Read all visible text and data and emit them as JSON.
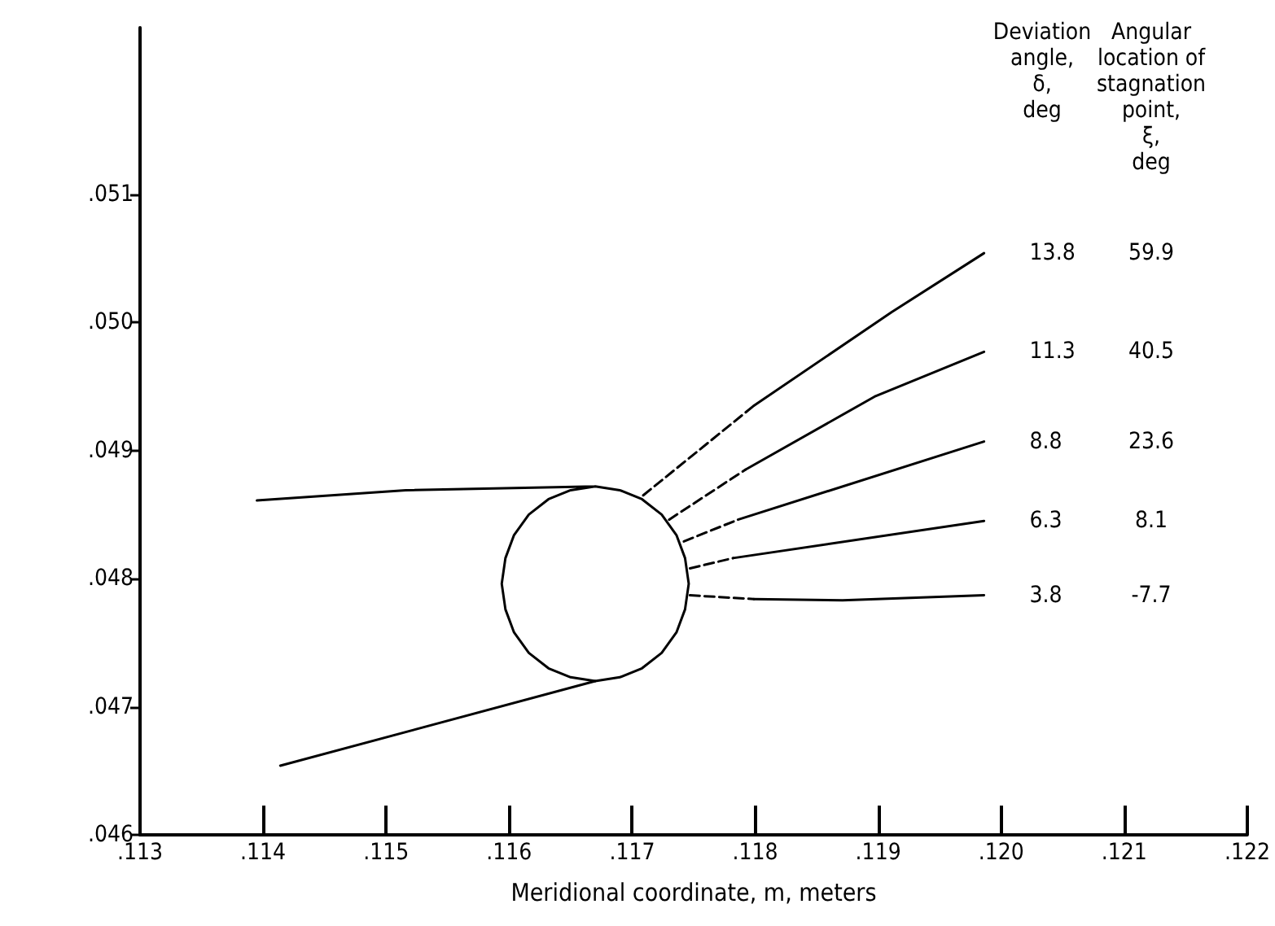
{
  "chart_data": {
    "type": "line",
    "xlabel": "Meridional coordinate, m, meters",
    "xlim": [
      0.113,
      0.122
    ],
    "xticks": [
      {
        "value": 0.113,
        "label": ".113"
      },
      {
        "value": 0.114,
        "label": ".114"
      },
      {
        "value": 0.115,
        "label": ".115"
      },
      {
        "value": 0.116,
        "label": ".116"
      },
      {
        "value": 0.117,
        "label": ".117"
      },
      {
        "value": 0.118,
        "label": ".118"
      },
      {
        "value": 0.119,
        "label": ".119"
      },
      {
        "value": 0.12,
        "label": ".120"
      },
      {
        "value": 0.121,
        "label": ".121"
      },
      {
        "value": 0.122,
        "label": ".122"
      }
    ],
    "ylim": [
      0.046,
      0.0523
    ],
    "yticks": [
      {
        "value": 0.046,
        "label": ".046"
      },
      {
        "value": 0.047,
        "label": ".047"
      },
      {
        "value": 0.048,
        "label": ".048"
      },
      {
        "value": 0.049,
        "label": ".049"
      },
      {
        "value": 0.05,
        "label": ".050"
      },
      {
        "value": 0.051,
        "label": ".051"
      }
    ],
    "grid": false,
    "legend": false,
    "marker": "none",
    "series": [
      {
        "color": "#000000",
        "line_style": "solid",
        "x": [
          0.11395,
          0.11516,
          0.1167,
          0.1169,
          0.11708,
          0.11724,
          0.11736,
          0.11743,
          0.11746,
          0.11743,
          0.11736,
          0.11724,
          0.11708,
          0.1169,
          0.1167,
          0.1165,
          0.11632,
          0.11616,
          0.11604,
          0.11597,
          0.11594,
          0.11597,
          0.11604,
          0.11616,
          0.11632,
          0.1165,
          0.1167
        ],
        "values": [
          0.04861,
          0.04869,
          0.04872,
          0.04869,
          0.04862,
          0.0485,
          0.04834,
          0.04816,
          0.04796,
          0.04776,
          0.04758,
          0.04742,
          0.0473,
          0.04723,
          0.0472,
          0.04723,
          0.0473,
          0.04742,
          0.04758,
          0.04776,
          0.04796,
          0.04816,
          0.04834,
          0.0485,
          0.04862,
          0.04869,
          0.04872
        ]
      },
      {
        "color": "#000000",
        "line_style": "solid",
        "x": [
          0.11414,
          0.1167
        ],
        "values": [
          0.04654,
          0.0472
        ]
      },
      {
        "color": "#000000",
        "line_style": "dashed",
        "x": [
          0.11709,
          0.11799
        ],
        "values": [
          0.04865,
          0.04935
        ]
      },
      {
        "name": "13.8",
        "color": "#000000",
        "line_style": "solid",
        "x": [
          0.11799,
          0.11911,
          0.11986
        ],
        "values": [
          0.04935,
          0.05008,
          0.05054
        ]
      },
      {
        "color": "#000000",
        "line_style": "dashed",
        "x": [
          0.1173,
          0.11792
        ],
        "values": [
          0.04846,
          0.04885
        ]
      },
      {
        "name": "11.3",
        "color": "#000000",
        "line_style": "solid",
        "x": [
          0.11792,
          0.11897,
          0.11986
        ],
        "values": [
          0.04885,
          0.04942,
          0.04977
        ]
      },
      {
        "color": "#000000",
        "line_style": "dashed",
        "x": [
          0.11742,
          0.11786
        ],
        "values": [
          0.04829,
          0.04846
        ]
      },
      {
        "name": "8.8",
        "color": "#000000",
        "line_style": "solid",
        "x": [
          0.11786,
          0.11986
        ],
        "values": [
          0.04846,
          0.04907
        ]
      },
      {
        "color": "#000000",
        "line_style": "dashed",
        "x": [
          0.11747,
          0.11782
        ],
        "values": [
          0.04808,
          0.04816
        ]
      },
      {
        "name": "6.3",
        "color": "#000000",
        "line_style": "solid",
        "x": [
          0.11782,
          0.11986
        ],
        "values": [
          0.04816,
          0.04845
        ]
      },
      {
        "color": "#000000",
        "line_style": "dashed",
        "x": [
          0.11747,
          0.11799
        ],
        "values": [
          0.04787,
          0.04784
        ]
      },
      {
        "name": "3.8",
        "color": "#000000",
        "line_style": "solid",
        "x": [
          0.11799,
          0.11871,
          0.11986
        ],
        "values": [
          0.04784,
          0.04783,
          0.04787
        ]
      }
    ],
    "annotations": [
      "Deviation\nangle,\nδ,\ndeg",
      "Angular\nlocation of\nstagnation\npoint,\nξ,\ndeg",
      "59.9",
      "40.5",
      "23.6",
      "8.1",
      "-7.7"
    ]
  }
}
